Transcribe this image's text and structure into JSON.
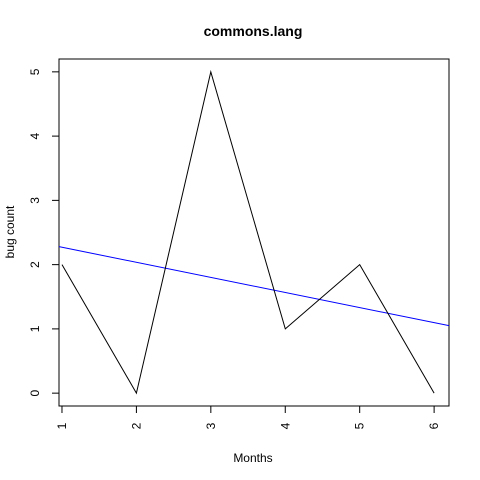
{
  "chart_data": {
    "type": "line",
    "title": "commons.lang",
    "xlabel": "Months",
    "ylabel": "bug count",
    "x": [
      1,
      2,
      3,
      4,
      5,
      6
    ],
    "series": [
      {
        "values": [
          2,
          0,
          5,
          1,
          2,
          0
        ],
        "color": "#000000"
      }
    ],
    "trend_line": {
      "y_at_xmin": 2.28,
      "y_at_xmax": 1.05,
      "color": "#0000ff"
    },
    "xlim": [
      0.96,
      6.2
    ],
    "ylim": [
      -0.2,
      5.2
    ],
    "x_ticks": [
      "1",
      "2",
      "3",
      "4",
      "5",
      "6"
    ],
    "y_ticks": [
      "0",
      "1",
      "2",
      "3",
      "4",
      "5"
    ],
    "grid": false,
    "legend": "none"
  }
}
